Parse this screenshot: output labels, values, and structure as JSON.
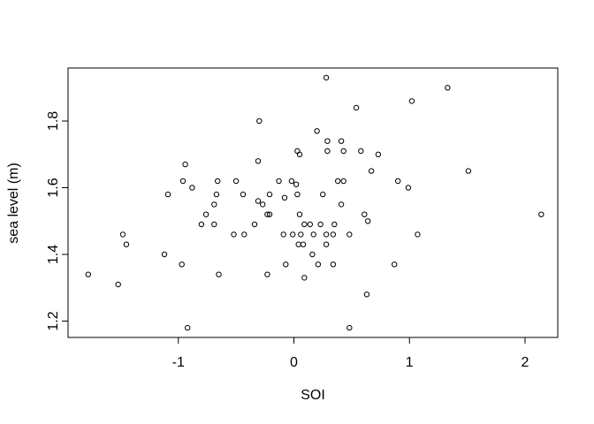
{
  "figure": {
    "background": "#ffffff",
    "foreground": "#000000"
  },
  "chart_data": {
    "type": "scatter",
    "title": "",
    "xlabel": "SOI",
    "ylabel": "sea level (m)",
    "marker": "open-circle",
    "marker_color": "#000000",
    "grid": false,
    "legend": null,
    "xlim": [
      -1.954,
      2.283
    ],
    "ylim": [
      1.151,
      1.959
    ],
    "x_ticks": [
      -1,
      0,
      1,
      2
    ],
    "x_tick_labels": [
      "-1",
      "0",
      "1",
      "2"
    ],
    "y_ticks": [
      1.2,
      1.4,
      1.6,
      1.8
    ],
    "y_tick_labels": [
      "1.2",
      "1.4",
      "1.6",
      "1.8"
    ],
    "points": [
      [
        0.28,
        1.93
      ],
      [
        1.33,
        1.9
      ],
      [
        1.02,
        1.86
      ],
      [
        0.54,
        1.84
      ],
      [
        -0.3,
        1.8
      ],
      [
        0.2,
        1.77
      ],
      [
        0.29,
        1.74
      ],
      [
        0.41,
        1.74
      ],
      [
        0.03,
        1.71
      ],
      [
        0.29,
        1.71
      ],
      [
        0.43,
        1.71
      ],
      [
        0.58,
        1.71
      ],
      [
        0.05,
        1.7
      ],
      [
        0.73,
        1.7
      ],
      [
        -0.31,
        1.68
      ],
      [
        -0.94,
        1.67
      ],
      [
        0.67,
        1.65
      ],
      [
        1.51,
        1.65
      ],
      [
        -0.96,
        1.62
      ],
      [
        -0.66,
        1.62
      ],
      [
        -0.5,
        1.62
      ],
      [
        -0.13,
        1.62
      ],
      [
        -0.02,
        1.62
      ],
      [
        0.38,
        1.62
      ],
      [
        0.43,
        1.62
      ],
      [
        0.9,
        1.62
      ],
      [
        0.02,
        1.61
      ],
      [
        -0.88,
        1.6
      ],
      [
        0.99,
        1.6
      ],
      [
        -1.09,
        1.58
      ],
      [
        -0.67,
        1.58
      ],
      [
        -0.44,
        1.58
      ],
      [
        -0.21,
        1.58
      ],
      [
        0.03,
        1.58
      ],
      [
        0.25,
        1.58
      ],
      [
        -0.08,
        1.57
      ],
      [
        -0.31,
        1.56
      ],
      [
        -0.69,
        1.55
      ],
      [
        -0.27,
        1.55
      ],
      [
        0.41,
        1.55
      ],
      [
        -0.76,
        1.52
      ],
      [
        -0.23,
        1.52
      ],
      [
        -0.21,
        1.52
      ],
      [
        0.05,
        1.52
      ],
      [
        0.61,
        1.52
      ],
      [
        2.14,
        1.52
      ],
      [
        0.64,
        1.5
      ],
      [
        -0.8,
        1.49
      ],
      [
        -0.69,
        1.49
      ],
      [
        -0.34,
        1.49
      ],
      [
        0.09,
        1.49
      ],
      [
        0.14,
        1.49
      ],
      [
        0.23,
        1.49
      ],
      [
        0.35,
        1.49
      ],
      [
        -1.48,
        1.46
      ],
      [
        -0.52,
        1.46
      ],
      [
        -0.43,
        1.46
      ],
      [
        -0.09,
        1.46
      ],
      [
        -0.01,
        1.46
      ],
      [
        0.06,
        1.46
      ],
      [
        0.17,
        1.46
      ],
      [
        0.28,
        1.46
      ],
      [
        0.34,
        1.46
      ],
      [
        0.48,
        1.46
      ],
      [
        1.07,
        1.46
      ],
      [
        -1.45,
        1.43
      ],
      [
        0.04,
        1.43
      ],
      [
        0.08,
        1.43
      ],
      [
        0.28,
        1.43
      ],
      [
        -1.12,
        1.4
      ],
      [
        0.16,
        1.4
      ],
      [
        -0.97,
        1.37
      ],
      [
        -0.07,
        1.37
      ],
      [
        0.21,
        1.37
      ],
      [
        0.34,
        1.37
      ],
      [
        0.87,
        1.37
      ],
      [
        -1.78,
        1.34
      ],
      [
        -0.65,
        1.34
      ],
      [
        -0.23,
        1.34
      ],
      [
        0.09,
        1.33
      ],
      [
        -1.52,
        1.31
      ],
      [
        0.63,
        1.28
      ],
      [
        -0.92,
        1.18
      ],
      [
        0.48,
        1.18
      ]
    ]
  }
}
